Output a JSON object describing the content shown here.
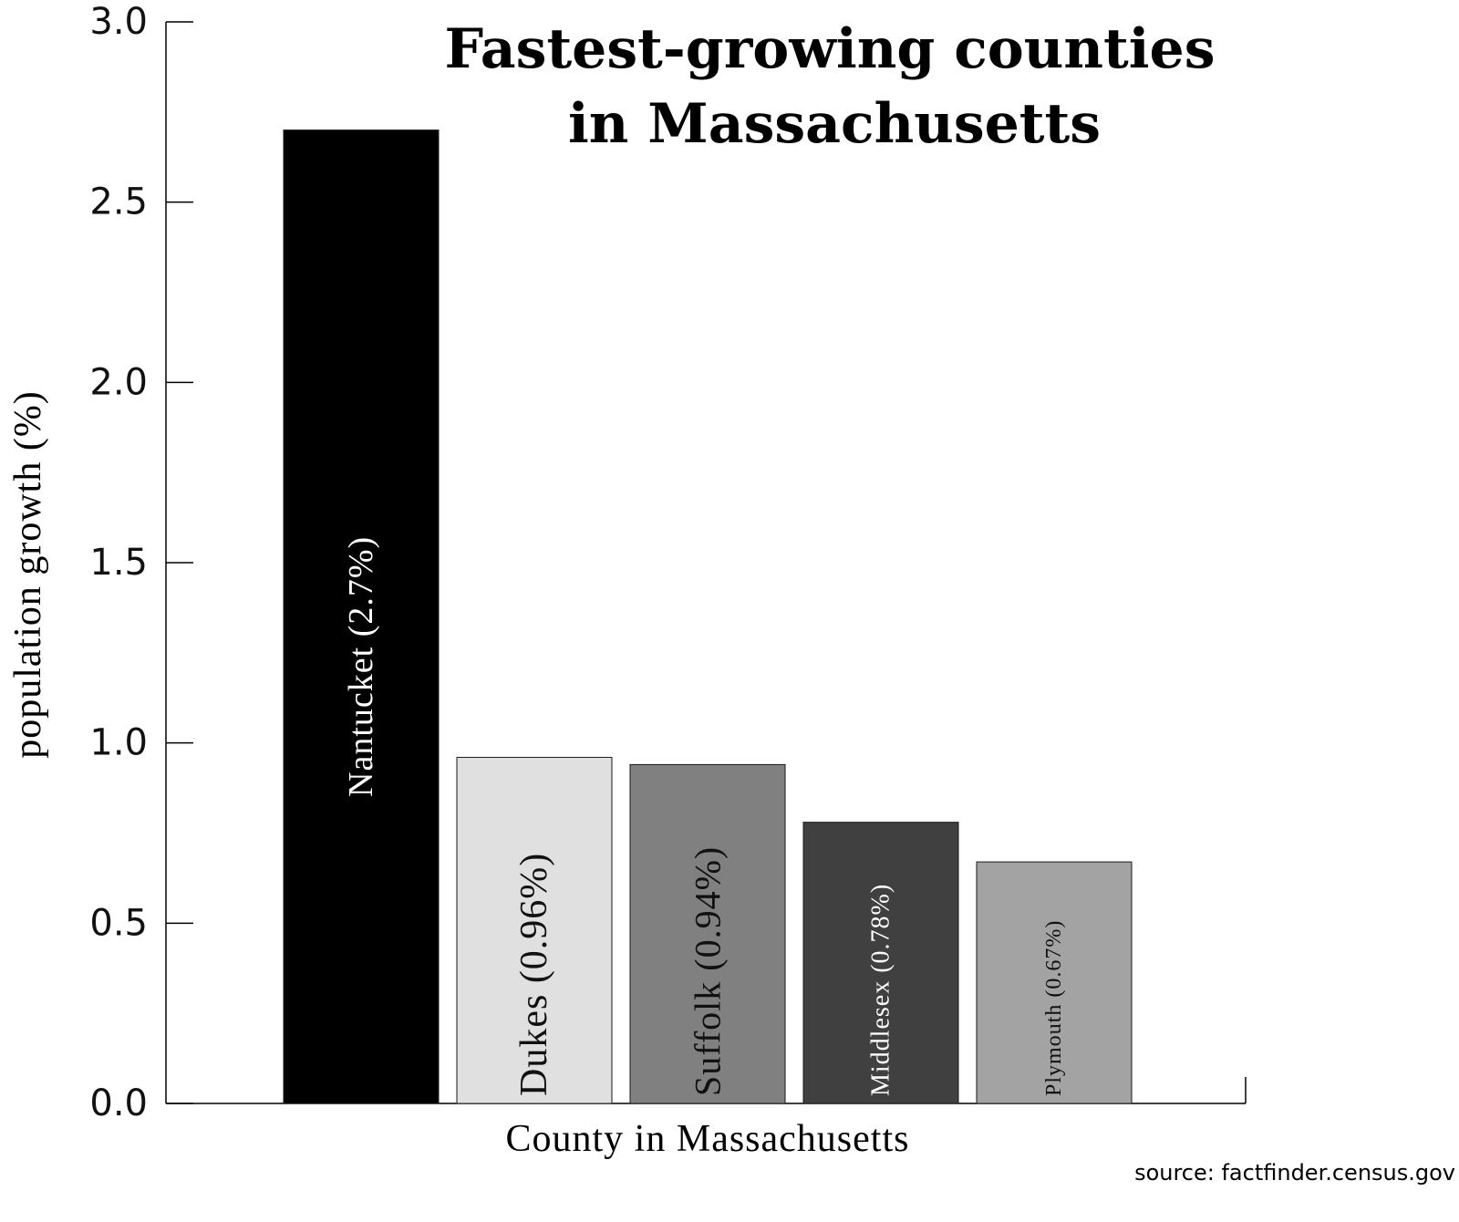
{
  "chart_data": {
    "type": "bar",
    "title": [
      "Fastest-growing counties",
      "in Massachusetts"
    ],
    "xlabel": "County in Massachusetts",
    "ylabel": "population growth (%)",
    "ylim": [
      0,
      3
    ],
    "y_ticks": [
      "0.0",
      "0.5",
      "1.0",
      "1.5",
      "2.0",
      "2.5",
      "3.0"
    ],
    "y_tick_values": [
      0,
      0.5,
      1.0,
      1.5,
      2.0,
      2.5,
      3.0
    ],
    "grid": false,
    "source": "source: factfinder.census.gov",
    "bars": [
      {
        "category": "Nantucket",
        "value": 2.7,
        "label": "Nantucket (2.7%)",
        "color": "#000000",
        "label_color": "#ffffff"
      },
      {
        "category": "Dukes",
        "value": 0.96,
        "label": "Dukes (0.96%)",
        "color": "#e0e0e0",
        "label_color": "#111111"
      },
      {
        "category": "Suffolk",
        "value": 0.94,
        "label": "Suffolk  (0.94%)",
        "color": "#808080",
        "label_color": "#111111"
      },
      {
        "category": "Middlesex",
        "value": 0.78,
        "label": "Middlesex (0.78%)",
        "color": "#404040",
        "label_color": "#ffffff"
      },
      {
        "category": "Plymouth",
        "value": 0.67,
        "label": "Plymouth (0.67%)",
        "color": "#a3a3a3",
        "label_color": "#111111"
      }
    ]
  }
}
